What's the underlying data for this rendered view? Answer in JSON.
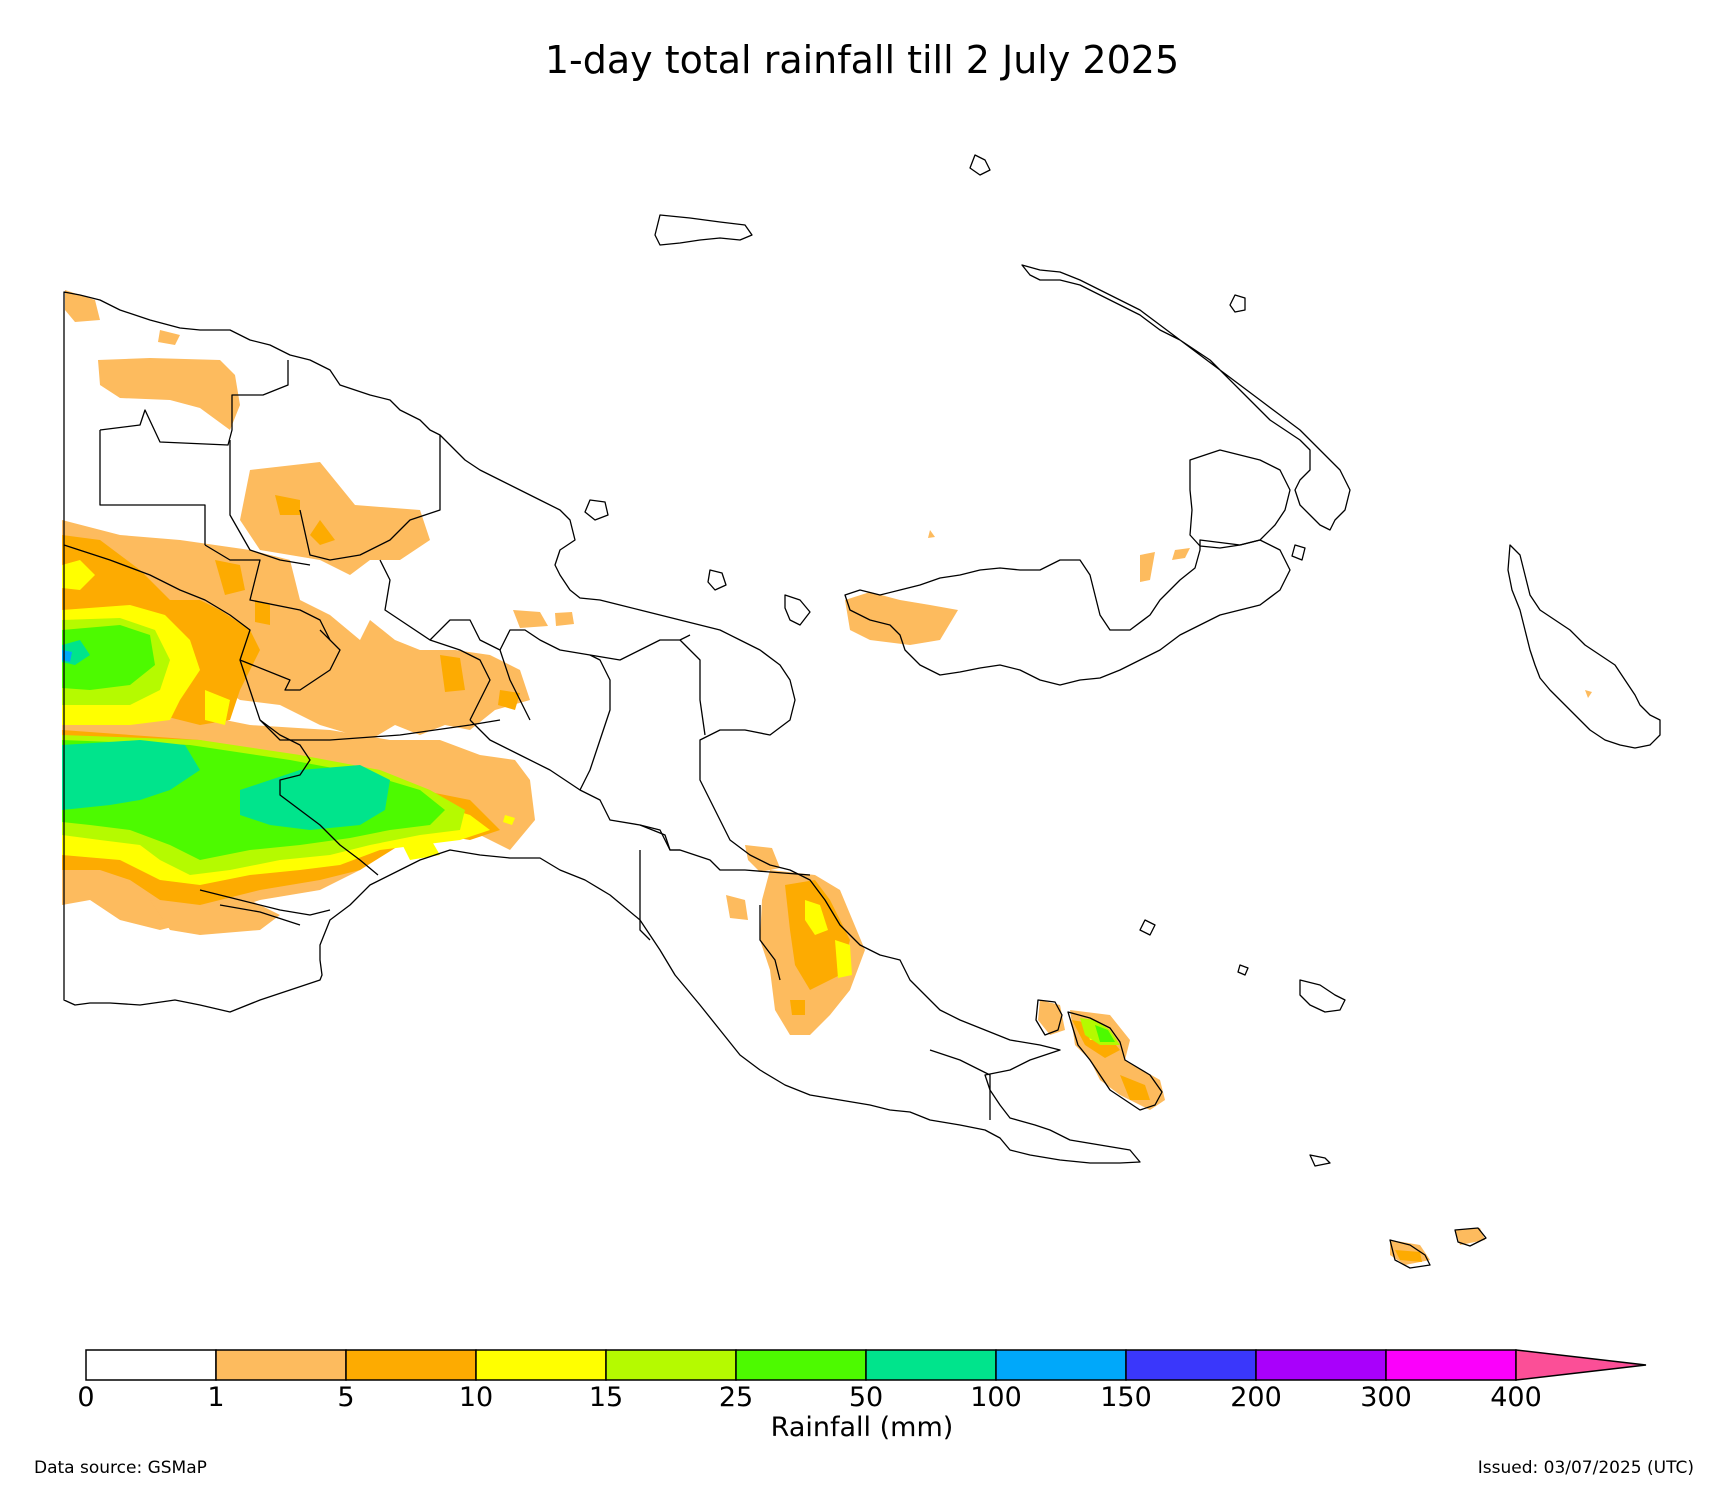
{
  "title": "1-day total rainfall till 2 July 2025",
  "colorbar": {
    "title": "Rainfall (mm)",
    "ticks": [
      "0",
      "1",
      "5",
      "10",
      "15",
      "25",
      "50",
      "100",
      "150",
      "200",
      "300",
      "400"
    ],
    "colors": [
      "#ffffff",
      "#fdbb5e",
      "#fdab01",
      "#ffff00",
      "#b5fa00",
      "#4dfa00",
      "#00e48c",
      "#00a8fa",
      "#3a37fb",
      "#a900fb",
      "#fb00fb",
      "#fb4f97"
    ]
  },
  "legend_levels": {
    "c1": "#fdbb5e",
    "c5": "#fdab01",
    "c10": "#ffff00",
    "c15": "#b5fa00",
    "c25": "#4dfa00",
    "c50": "#00e48c"
  },
  "footer": {
    "source": "Data source: GSMaP",
    "issued": "Issued: 03/07/2025 (UTC)"
  }
}
